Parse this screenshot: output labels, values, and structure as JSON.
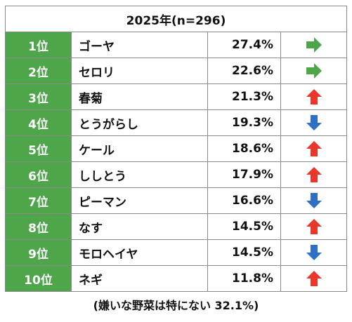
{
  "header": "2025年(n=296)",
  "rows": [
    {
      "rank": "1位",
      "name": "ゴーヤ",
      "pct": "27.4%",
      "trend": "right-arrow-icon",
      "color": "#4ea54a"
    },
    {
      "rank": "2位",
      "name": "セロリ",
      "pct": "22.6%",
      "trend": "right-arrow-icon",
      "color": "#4ea54a"
    },
    {
      "rank": "3位",
      "name": "春菊",
      "pct": "21.3%",
      "trend": "up-arrow-icon",
      "color": "#e8382c"
    },
    {
      "rank": "4位",
      "name": "とうがらし",
      "pct": "19.3%",
      "trend": "down-arrow-icon",
      "color": "#2f6fc4"
    },
    {
      "rank": "5位",
      "name": "ケール",
      "pct": "18.6%",
      "trend": "up-arrow-icon",
      "color": "#e8382c"
    },
    {
      "rank": "6位",
      "name": "ししとう",
      "pct": "17.9%",
      "trend": "up-arrow-icon",
      "color": "#e8382c"
    },
    {
      "rank": "7位",
      "name": "ピーマン",
      "pct": "16.6%",
      "trend": "down-arrow-icon",
      "color": "#2f6fc4"
    },
    {
      "rank": "8位",
      "name": "なす",
      "pct": "14.5%",
      "trend": "up-arrow-icon",
      "color": "#e8382c"
    },
    {
      "rank": "9位",
      "name": "モロヘイヤ",
      "pct": "14.5%",
      "trend": "down-arrow-icon",
      "color": "#2f6fc4"
    },
    {
      "rank": "10位",
      "name": "ネギ",
      "pct": "11.8%",
      "trend": "up-arrow-icon",
      "color": "#e8382c"
    }
  ],
  "footnote": "(嫌いな野菜は特にない 32.1%)"
}
